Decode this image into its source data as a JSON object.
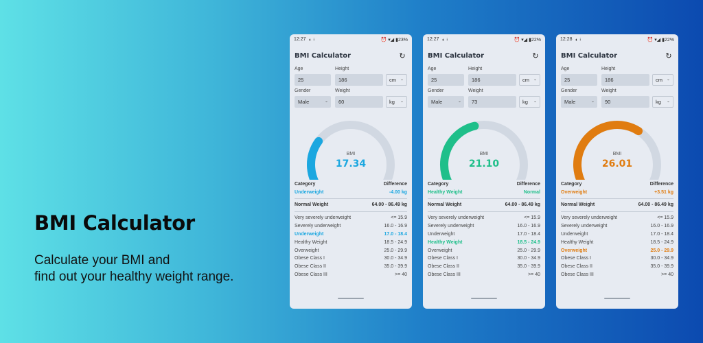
{
  "promo": {
    "title": "BMI Calculator",
    "line1": "Calculate your BMI and",
    "line2": "find out your healthy weight range."
  },
  "common": {
    "app_title": "BMI Calculator",
    "age_label": "Age",
    "height_label": "Height",
    "gender_label": "Gender",
    "weight_label": "Weight",
    "bmi_label": "BMI",
    "category_header": "Category",
    "difference_header": "Difference",
    "normal_weight_label": "Normal Weight",
    "ranges": [
      {
        "name": "Very severely underweight",
        "range": "<= 15.9"
      },
      {
        "name": "Severely underweight",
        "range": "16.0 - 16.9"
      },
      {
        "name": "Underweight",
        "range": "17.0 - 18.4"
      },
      {
        "name": "Healthy Weight",
        "range": "18.5 - 24.9"
      },
      {
        "name": "Overweight",
        "range": "25.0 - 29.9"
      },
      {
        "name": "Obese Class I",
        "range": "30.0 - 34.9"
      },
      {
        "name": "Obese Class II",
        "range": "35.0 - 39.9"
      },
      {
        "name": "Obese Class III",
        "range": ">= 40"
      }
    ]
  },
  "phones": [
    {
      "status_time": "12:27",
      "status_right": "⏰ ▾◢ ▮23%",
      "age": "25",
      "height": "186",
      "height_unit": "cm",
      "gender": "Male",
      "weight": "60",
      "weight_unit": "kg",
      "bmi": "17.34",
      "gauge_fraction": 0.3,
      "color": "#1ba7e0",
      "category": "Underweight",
      "difference": "-4.00 kg",
      "normal_range": "64.00 - 86.49 kg",
      "active_index": 2
    },
    {
      "status_time": "12:27",
      "status_right": "⏰ ▾◢ ▮22%",
      "age": "25",
      "height": "186",
      "height_unit": "cm",
      "gender": "Male",
      "weight": "73",
      "weight_unit": "kg",
      "bmi": "21.10",
      "gauge_fraction": 0.45,
      "color": "#1fbf8a",
      "category": "Healthy Weight",
      "difference": "Normal",
      "normal_range": "64.00 - 86.49 kg",
      "active_index": 3
    },
    {
      "status_time": "12:28",
      "status_right": "⏰ ▾◢ ▮22%",
      "age": "25",
      "height": "186",
      "height_unit": "cm",
      "gender": "Male",
      "weight": "90",
      "weight_unit": "kg",
      "bmi": "26.01",
      "gauge_fraction": 0.62,
      "color": "#e07c10",
      "category": "Overweight",
      "difference": "+3.51 kg",
      "normal_range": "64.00 - 86.49 kg",
      "active_index": 4
    }
  ]
}
